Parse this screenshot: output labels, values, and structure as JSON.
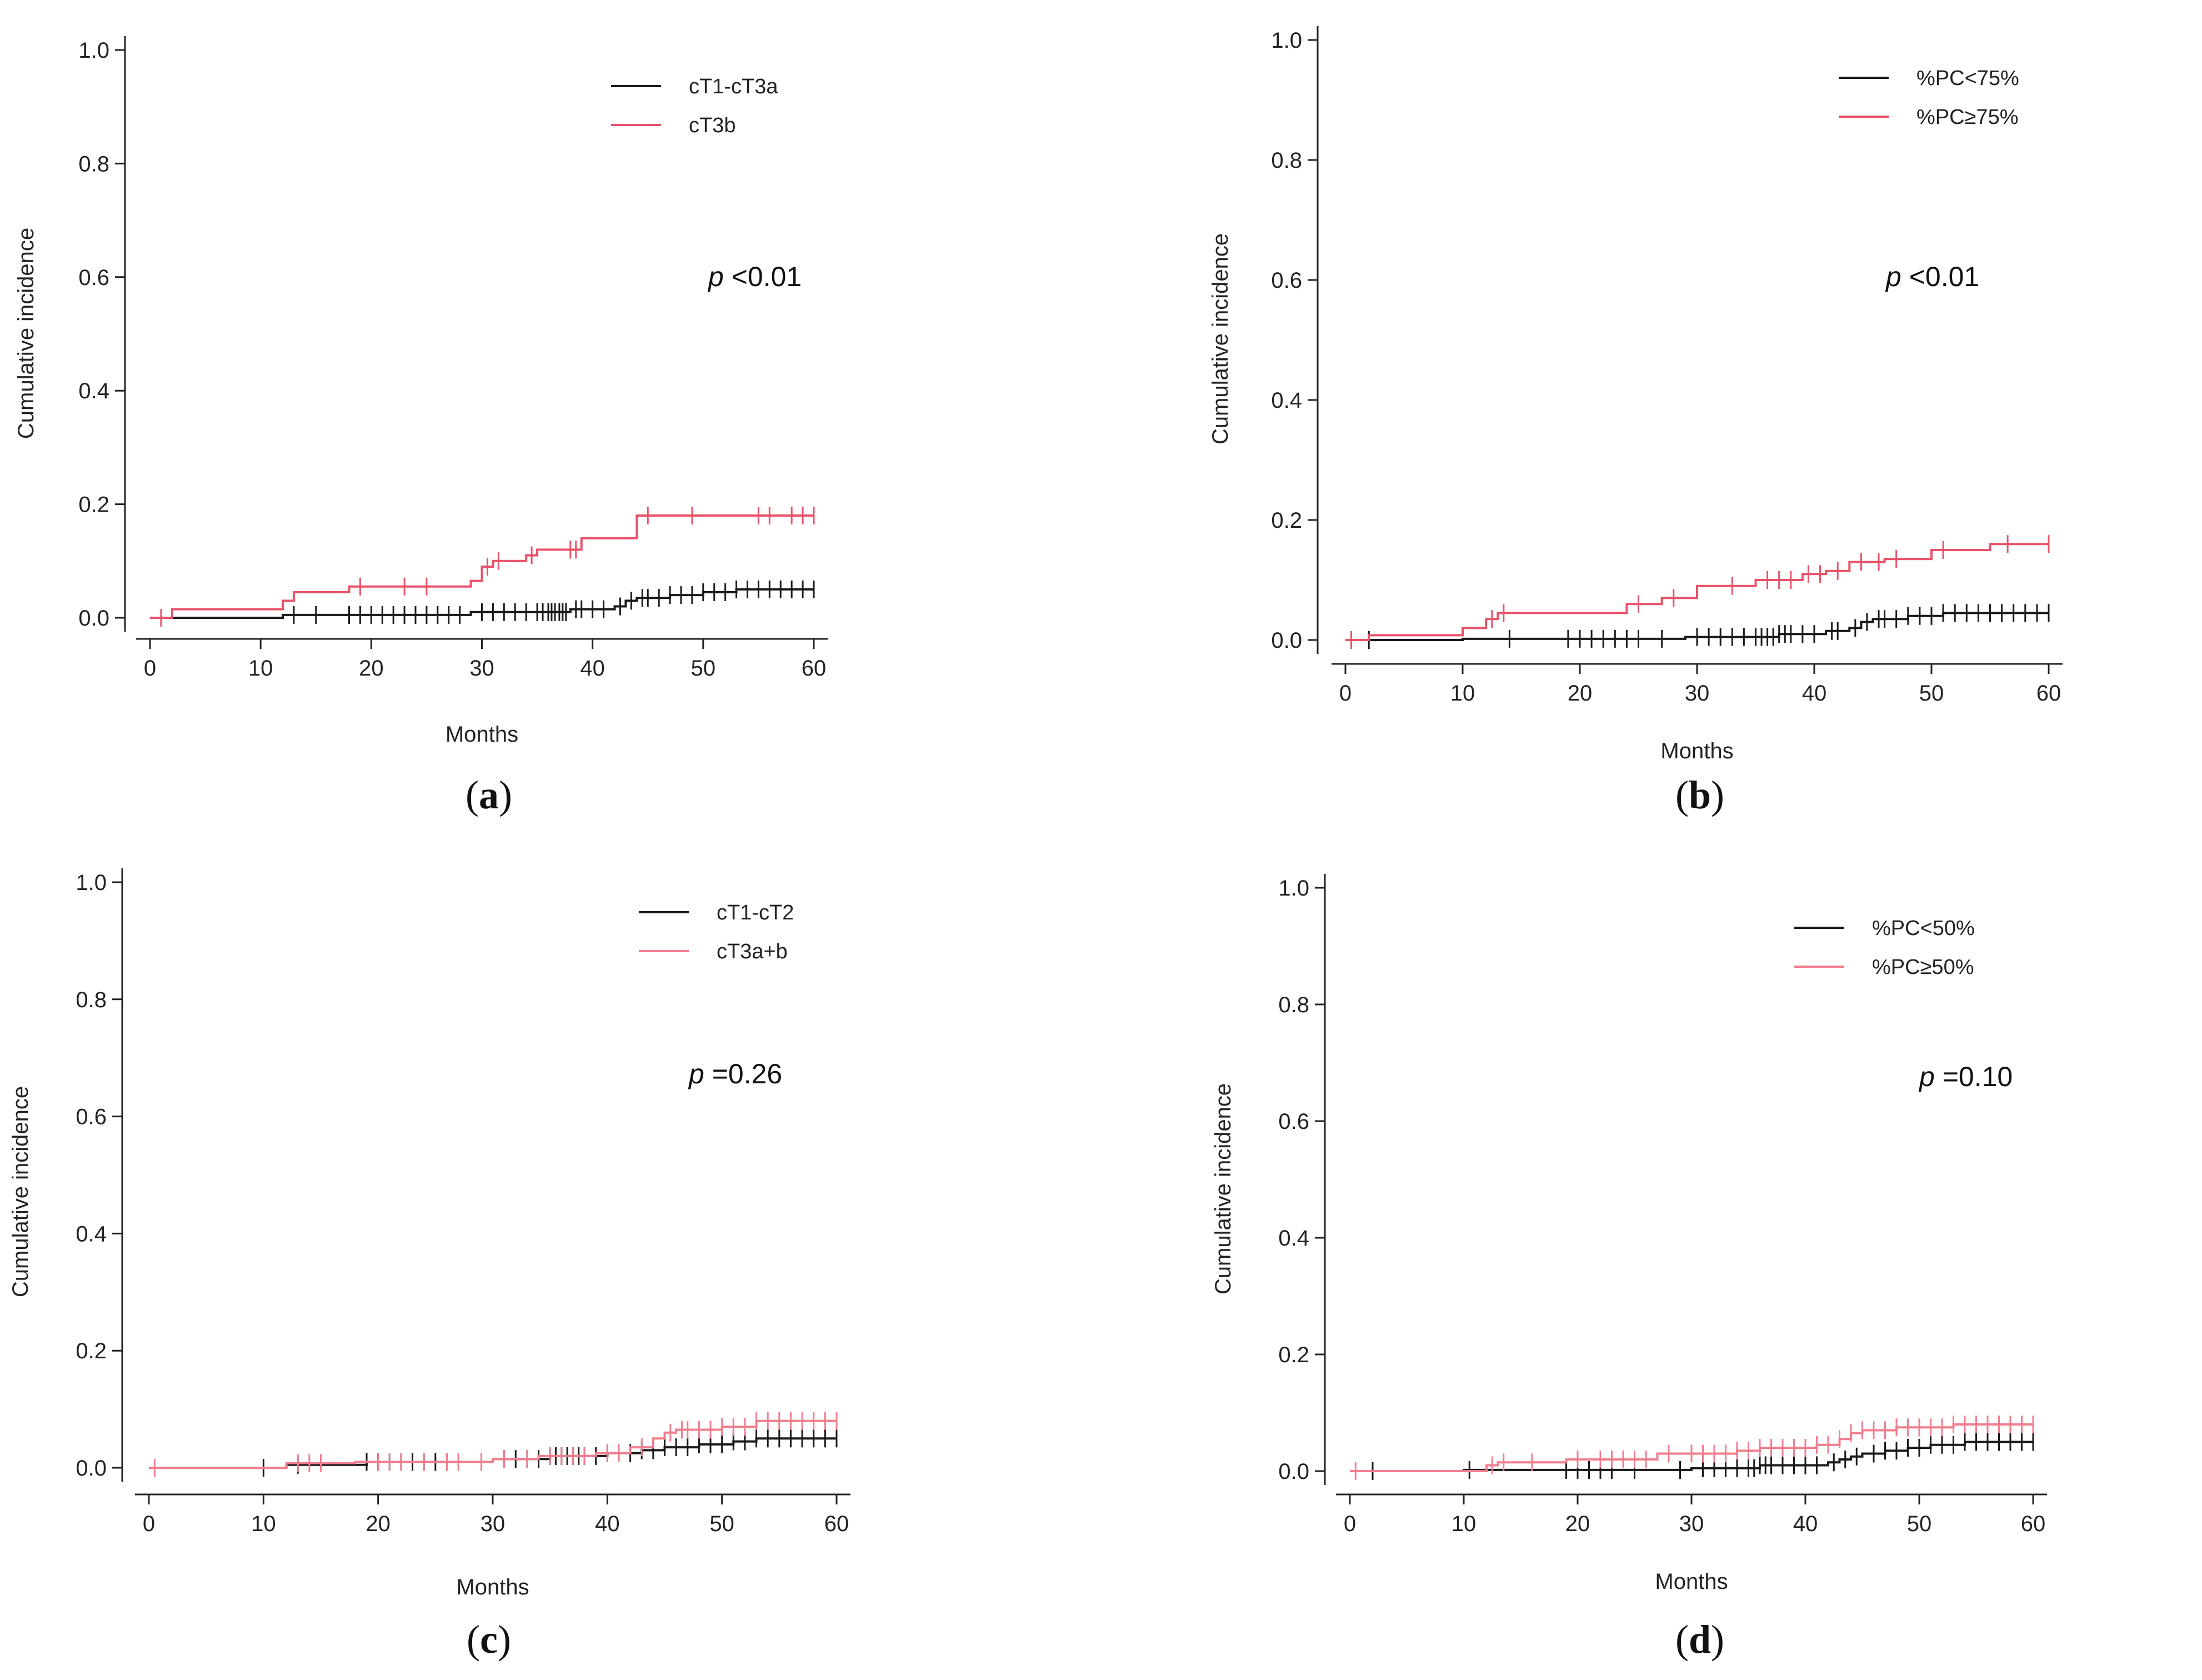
{
  "chart_data": [
    {
      "type": "line",
      "panel": "a",
      "panel_label_open": "(",
      "panel_label_letter": "a",
      "panel_label_close": ")",
      "xlabel": "Months",
      "ylabel": "Cumulative incidence",
      "xlim": [
        0,
        60
      ],
      "ylim": [
        0,
        1.0
      ],
      "xticks": [
        0,
        10,
        20,
        30,
        40,
        50,
        60
      ],
      "yticks": [
        "0.0",
        "0.2",
        "0.4",
        "0.6",
        "0.8",
        "1.0"
      ],
      "p_prefix": "p",
      "p_value": " <0.01",
      "legend_position": "top-right",
      "series": [
        {
          "name": "cT1-cT3a",
          "color": "#1a1a1a",
          "steps": [
            [
              0,
              0.0
            ],
            [
              12,
              0.005
            ],
            [
              29,
              0.01
            ],
            [
              38,
              0.015
            ],
            [
              42,
              0.02
            ],
            [
              43,
              0.03
            ],
            [
              44,
              0.035
            ],
            [
              47,
              0.04
            ],
            [
              50,
              0.045
            ],
            [
              53,
              0.05
            ]
          ],
          "censor_times": [
            13,
            15,
            18,
            19,
            20,
            21,
            22,
            23,
            24,
            25,
            26,
            27,
            28,
            30,
            31,
            32,
            33,
            34,
            35,
            35.5,
            36,
            36.3,
            36.6,
            37,
            37.3,
            37.6,
            38.5,
            39,
            40,
            41,
            42.5,
            43.5,
            44.5,
            45,
            46,
            47,
            48,
            49,
            50,
            51,
            52,
            53,
            54,
            55,
            56,
            57,
            58,
            59,
            60
          ]
        },
        {
          "name": "cT3b",
          "color": "#e8536a",
          "steps": [
            [
              0,
              0.0
            ],
            [
              2,
              0.015
            ],
            [
              12,
              0.03
            ],
            [
              13,
              0.045
            ],
            [
              18,
              0.055
            ],
            [
              29,
              0.065
            ],
            [
              30,
              0.09
            ],
            [
              31,
              0.1
            ],
            [
              34,
              0.11
            ],
            [
              35,
              0.12
            ],
            [
              39,
              0.14
            ],
            [
              44,
              0.18
            ]
          ],
          "censor_times": [
            1,
            19,
            23,
            25,
            30.5,
            31.5,
            34.5,
            38,
            38.5,
            45,
            49,
            55,
            56,
            58,
            59,
            60
          ]
        }
      ]
    },
    {
      "type": "line",
      "panel": "b",
      "panel_label_open": "(",
      "panel_label_letter": "b",
      "panel_label_close": ")",
      "xlabel": "Months",
      "ylabel": "Cumulative incidence",
      "xlim": [
        0,
        60
      ],
      "ylim": [
        0,
        1.0
      ],
      "xticks": [
        0,
        10,
        20,
        30,
        40,
        50,
        60
      ],
      "yticks": [
        "0.0",
        "0.2",
        "0.4",
        "0.6",
        "0.8",
        "1.0"
      ],
      "p_prefix": "p",
      "p_value": " <0.01",
      "legend_position": "top-right",
      "series": [
        {
          "name": "%PC<75%",
          "color": "#1a1a1a",
          "steps": [
            [
              0,
              0.0
            ],
            [
              10,
              0.002
            ],
            [
              29,
              0.005
            ],
            [
              37,
              0.01
            ],
            [
              41,
              0.015
            ],
            [
              43,
              0.02
            ],
            [
              44,
              0.03
            ],
            [
              45,
              0.035
            ],
            [
              48,
              0.04
            ],
            [
              51,
              0.045
            ]
          ],
          "censor_times": [
            2,
            14,
            19,
            20,
            21,
            22,
            23,
            24,
            25,
            27,
            30,
            31,
            32,
            33,
            34,
            35,
            35.5,
            36,
            36.5,
            37,
            37.5,
            38,
            39,
            40,
            41.5,
            42,
            43.5,
            44.5,
            45.5,
            46,
            47,
            48,
            49,
            50,
            51,
            52,
            53,
            54,
            55,
            56,
            57,
            58,
            59,
            60
          ]
        },
        {
          "name": "%PC≥75%",
          "color": "#e8536a",
          "steps": [
            [
              0,
              0.0
            ],
            [
              2,
              0.008
            ],
            [
              10,
              0.02
            ],
            [
              12,
              0.035
            ],
            [
              13,
              0.045
            ],
            [
              24,
              0.06
            ],
            [
              27,
              0.07
            ],
            [
              30,
              0.09
            ],
            [
              35,
              0.1
            ],
            [
              39,
              0.11
            ],
            [
              41,
              0.115
            ],
            [
              43,
              0.13
            ],
            [
              46,
              0.135
            ],
            [
              50,
              0.15
            ],
            [
              55,
              0.16
            ]
          ],
          "censor_times": [
            0.5,
            12.5,
            13.5,
            25,
            28,
            33,
            36,
            37,
            38,
            39.5,
            40.5,
            42,
            44,
            45.5,
            47,
            51,
            56.5,
            60
          ]
        }
      ]
    },
    {
      "type": "line",
      "panel": "c",
      "panel_label_open": "(",
      "panel_label_letter": "c",
      "panel_label_close": ")",
      "xlabel": "Months",
      "ylabel": "Cumulative incidence",
      "xlim": [
        0,
        60
      ],
      "ylim": [
        0,
        1.0
      ],
      "xticks": [
        0,
        10,
        20,
        30,
        40,
        50,
        60
      ],
      "yticks": [
        "0.0",
        "0.2",
        "0.4",
        "0.6",
        "0.8",
        "1.0"
      ],
      "p_prefix": "p",
      "p_value": " =0.26",
      "legend_position": "top-right",
      "series": [
        {
          "name": "cT1-cT2",
          "color": "#1a1a1a",
          "steps": [
            [
              0,
              0.0
            ],
            [
              12,
              0.005
            ],
            [
              19,
              0.01
            ],
            [
              30,
              0.015
            ],
            [
              35,
              0.02
            ],
            [
              40,
              0.025
            ],
            [
              43,
              0.03
            ],
            [
              45,
              0.035
            ],
            [
              48,
              0.04
            ],
            [
              51,
              0.045
            ],
            [
              53,
              0.05
            ]
          ],
          "censor_times": [
            10,
            13,
            19,
            20,
            21,
            22,
            23,
            24,
            25,
            31,
            32,
            33,
            34,
            35,
            35.5,
            36,
            36.5,
            37,
            37.5,
            38,
            39,
            40,
            41,
            42,
            43,
            44,
            45,
            46,
            47,
            48,
            49,
            50,
            51,
            52,
            53,
            54,
            55,
            56,
            57,
            58,
            59,
            60
          ]
        },
        {
          "name": "cT3a+b",
          "color": "#f07e8e",
          "steps": [
            [
              0,
              0.0
            ],
            [
              12,
              0.008
            ],
            [
              18,
              0.01
            ],
            [
              30,
              0.015
            ],
            [
              34,
              0.02
            ],
            [
              39,
              0.025
            ],
            [
              42,
              0.035
            ],
            [
              44,
              0.05
            ],
            [
              45,
              0.06
            ],
            [
              46,
              0.065
            ],
            [
              50,
              0.07
            ],
            [
              53,
              0.08
            ]
          ],
          "censor_times": [
            0.5,
            13,
            14,
            15,
            20,
            21,
            22,
            24,
            26,
            27,
            29,
            31,
            33,
            35,
            36,
            37,
            38,
            40,
            41,
            43,
            45.5,
            46.5,
            47,
            48,
            49,
            50,
            51,
            52,
            53,
            54,
            55,
            56,
            57,
            58,
            59,
            60
          ]
        }
      ]
    },
    {
      "type": "line",
      "panel": "d",
      "panel_label_open": "(",
      "panel_label_letter": "d",
      "panel_label_close": ")",
      "xlabel": "Months",
      "ylabel": "Cumulative incidence",
      "xlim": [
        0,
        60
      ],
      "ylim": [
        0,
        1.0
      ],
      "xticks": [
        0,
        10,
        20,
        30,
        40,
        50,
        60
      ],
      "yticks": [
        "0.0",
        "0.2",
        "0.4",
        "0.6",
        "0.8",
        "1.0"
      ],
      "p_prefix": "p",
      "p_value": " =0.10",
      "legend_position": "top-right",
      "series": [
        {
          "name": "%PC<50%",
          "color": "#1a1a1a",
          "steps": [
            [
              0,
              0.0
            ],
            [
              10,
              0.002
            ],
            [
              30,
              0.005
            ],
            [
              36,
              0.01
            ],
            [
              42,
              0.015
            ],
            [
              43,
              0.02
            ],
            [
              44,
              0.025
            ],
            [
              45,
              0.03
            ],
            [
              47,
              0.035
            ],
            [
              49,
              0.04
            ],
            [
              51,
              0.045
            ],
            [
              54,
              0.05
            ]
          ],
          "censor_times": [
            2,
            10.5,
            19,
            20,
            21,
            22,
            23,
            25,
            29,
            31,
            32,
            33,
            34,
            35,
            35.5,
            36,
            36.5,
            37,
            38,
            39,
            40,
            41,
            42.5,
            43.5,
            44.5,
            46,
            47,
            48,
            49,
            50,
            51,
            52,
            53,
            54,
            55,
            56,
            57,
            58,
            59,
            60
          ]
        },
        {
          "name": "%PC≥50%",
          "color": "#f07e8e",
          "steps": [
            [
              0,
              0.0
            ],
            [
              12,
              0.01
            ],
            [
              13,
              0.015
            ],
            [
              19,
              0.02
            ],
            [
              27,
              0.03
            ],
            [
              34,
              0.035
            ],
            [
              36,
              0.04
            ],
            [
              41,
              0.045
            ],
            [
              43,
              0.055
            ],
            [
              44,
              0.065
            ],
            [
              45,
              0.07
            ],
            [
              48,
              0.075
            ],
            [
              53,
              0.08
            ]
          ],
          "censor_times": [
            0.5,
            12.5,
            13.5,
            16,
            20,
            22,
            23,
            24,
            25,
            26,
            28,
            30,
            31,
            32,
            33,
            34,
            35,
            36,
            37,
            38,
            39,
            40,
            41,
            42,
            43,
            44,
            45,
            46,
            47,
            48,
            49,
            50,
            51,
            52,
            53,
            54,
            55,
            56,
            57,
            58,
            59,
            60
          ]
        }
      ]
    }
  ]
}
